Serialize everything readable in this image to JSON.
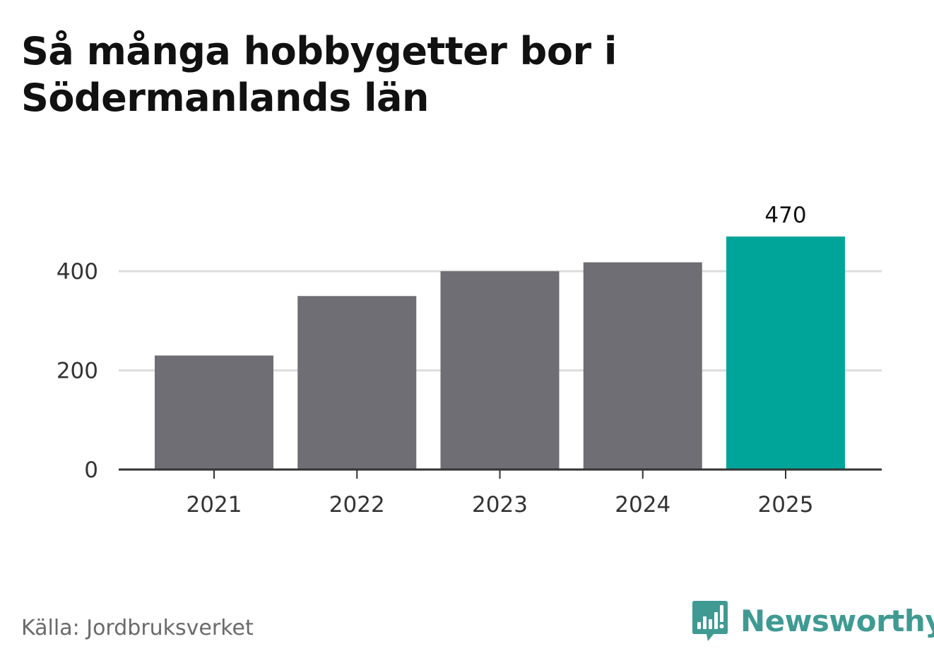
{
  "title": "Så många hobbygetter bor i Södermanlands län",
  "source": "Källa: Jordbruksverket",
  "logo": {
    "text": "Newsworthy",
    "icon": "bar-chart-speech-bubble-icon",
    "color": "#3f9a93"
  },
  "colors": {
    "bar": "#6f6e74",
    "highlight": "#00a59a",
    "grid": "#dddddd",
    "axis": "#333333",
    "tick_text": "#333333",
    "label_text": "#111111"
  },
  "chart_data": {
    "type": "bar",
    "title": "Så många hobbygetter bor i Södermanlands län",
    "xlabel": "",
    "ylabel": "",
    "categories": [
      "2021",
      "2022",
      "2023",
      "2024",
      "2025"
    ],
    "values": [
      230,
      350,
      400,
      418,
      470
    ],
    "highlight_index": 4,
    "data_labels": [
      {
        "index": 4,
        "text": "470"
      }
    ],
    "ylim": [
      0,
      470
    ],
    "yticks": [
      0,
      200,
      400
    ],
    "ytick_labels": [
      "0",
      "200",
      "400"
    ],
    "grid": true,
    "legend": "none"
  }
}
